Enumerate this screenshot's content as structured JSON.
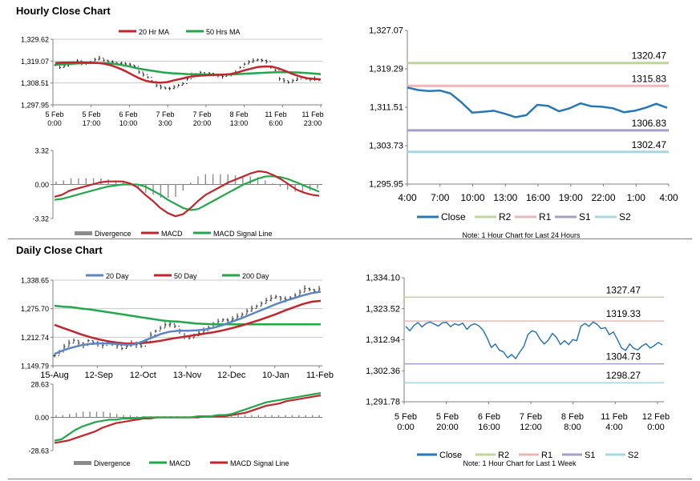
{
  "colors": {
    "ma20": "#c0262c",
    "ma50": "#22a84a",
    "ma20d": "#5b86c4",
    "ma50d": "#c0262c",
    "ma200d": "#22a84a",
    "divergence": "#8c8c8c",
    "close": "#2878b7",
    "r2": "#bcd79a",
    "r1": "#eab8b6",
    "s1": "#a79ec7",
    "s2": "#a9d6e3",
    "price": "#222222",
    "axis": "#808080",
    "grid": "#c8c8c8"
  },
  "sections": {
    "hourly_title": "Hourly Close Chart",
    "daily_title": "Daily Close Chart"
  },
  "chart_data": [
    {
      "id": "hourly_price",
      "type": "line",
      "xlabels": [
        "5 Feb",
        "5 Feb",
        "6 Feb",
        "7 Feb",
        "7 Feb",
        "8 Feb",
        "11 Feb",
        "11 Feb"
      ],
      "xlabels2": [
        "0:00",
        "17:00",
        "10:00",
        "3:00",
        "20:00",
        "13:00",
        "6:00",
        "23:00"
      ],
      "yticks": [
        "1,329.62",
        "1,319.07",
        "1,308.51",
        "1,297.95"
      ],
      "ytick_values": [
        1329.62,
        1319.07,
        1308.51,
        1297.95
      ],
      "ylim": [
        1297.95,
        1329.62
      ],
      "legend": [
        "20 Hr MA",
        "50 Hrs MA"
      ],
      "series": [
        {
          "name": "Price",
          "values": [
            1317.2,
            1316.0,
            1316.8,
            1317.5,
            1318.3,
            1319.2,
            1318.0,
            1317.8,
            1318.5,
            1319.8,
            1320.5,
            1319.5,
            1318.8,
            1318.5,
            1317.9,
            1318.1,
            1317.6,
            1317.2,
            1316.5,
            1313.8,
            1312.5,
            1311.2,
            1309.2,
            1307.3,
            1306.5,
            1306.0,
            1305.8,
            1306.5,
            1307.4,
            1308.2,
            1310.5,
            1312.4,
            1312.6,
            1313.5,
            1312.6,
            1313.3,
            1312.5,
            1312.1,
            1311.7,
            1312.3,
            1312.5,
            1313.7,
            1316.0,
            1317.6,
            1318.6,
            1319.3,
            1319.7,
            1319.4,
            1318.8,
            1316.0,
            1314.6,
            1310.5,
            1309.6,
            1308.8,
            1309.7,
            1310.4,
            1311.3,
            1310.8,
            1310.2,
            1310.6,
            1310.0
          ]
        },
        {
          "name": "20 Hr MA",
          "values": [
            1318.2,
            1318.3,
            1318.4,
            1318.4,
            1318.4,
            1318.3,
            1318.2,
            1317.8,
            1317.0,
            1315.8,
            1314.3,
            1312.5,
            1310.8,
            1309.5,
            1308.9,
            1308.6,
            1308.9,
            1309.8,
            1310.5,
            1311.3,
            1311.8,
            1312.1,
            1312.3,
            1312.4,
            1312.5,
            1312.8,
            1313.5,
            1314.5,
            1315.4,
            1316.2,
            1316.5,
            1316.4,
            1315.5,
            1314.2,
            1312.8,
            1311.7,
            1310.8,
            1310.5,
            1310.2
          ]
        },
        {
          "name": "50 Hrs MA",
          "values": [
            1317.3,
            1317.5,
            1317.8,
            1318.0,
            1318.1,
            1318.2,
            1318.1,
            1317.8,
            1317.2,
            1316.4,
            1315.5,
            1314.8,
            1314.2,
            1313.6,
            1313.2,
            1313.0,
            1312.8,
            1312.7,
            1312.6,
            1312.5,
            1312.5,
            1312.6,
            1312.8,
            1313.0,
            1313.2,
            1313.4,
            1313.6,
            1313.7,
            1313.7,
            1313.6,
            1313.4,
            1313.1,
            1312.8
          ]
        }
      ]
    },
    {
      "id": "hourly_macd",
      "type": "line",
      "yticks": [
        "3.32",
        "0.00",
        "-3.32"
      ],
      "ytick_values": [
        3.32,
        0,
        -3.32
      ],
      "ylim": [
        -3.32,
        3.32
      ],
      "legend": [
        "Divergence",
        "MACD",
        "MACD Signal Line"
      ],
      "series": [
        {
          "name": "MACD",
          "values": [
            -1.2,
            -1.0,
            -0.6,
            -0.4,
            -0.2,
            0.0,
            0.2,
            0.3,
            0.3,
            0.3,
            0.1,
            -0.3,
            -1.0,
            -1.6,
            -2.3,
            -2.8,
            -3.1,
            -2.9,
            -2.3,
            -1.6,
            -1.0,
            -0.6,
            -0.2,
            0.2,
            0.5,
            0.8,
            1.1,
            1.3,
            1.2,
            0.9,
            0.5,
            0.0,
            -0.5,
            -0.8,
            -1.0,
            -1.1
          ]
        },
        {
          "name": "MACD Signal Line",
          "values": [
            -1.5,
            -1.4,
            -1.2,
            -1.0,
            -0.8,
            -0.6,
            -0.4,
            -0.2,
            -0.1,
            0.0,
            0.0,
            0.0,
            -0.2,
            -0.6,
            -1.0,
            -1.5,
            -1.9,
            -2.3,
            -2.5,
            -2.4,
            -2.0,
            -1.6,
            -1.2,
            -0.8,
            -0.4,
            0.0,
            0.3,
            0.6,
            0.8,
            0.8,
            0.7,
            0.5,
            0.2,
            -0.1,
            -0.4,
            -0.7
          ]
        },
        {
          "name": "Divergence",
          "values": [
            0.3,
            0.4,
            0.6,
            0.6,
            0.6,
            0.6,
            0.6,
            0.5,
            0.4,
            0.3,
            0.1,
            -0.3,
            -0.8,
            -1.0,
            -1.3,
            -1.3,
            -1.2,
            -0.6,
            0.2,
            0.8,
            1.0,
            1.0,
            1.0,
            1.0,
            0.9,
            0.8,
            0.8,
            0.7,
            0.4,
            0.1,
            -0.2,
            -0.5,
            -0.7,
            -0.7,
            -0.6,
            -0.4
          ]
        }
      ]
    },
    {
      "id": "hourly_close",
      "type": "line",
      "xlabels": [
        "4:00",
        "7:00",
        "10:00",
        "13:00",
        "16:00",
        "19:00",
        "22:00",
        "1:00",
        "4:00"
      ],
      "yticks": [
        "1,327.07",
        "1,319.29",
        "1,311.51",
        "1,303.73",
        "1,295.95"
      ],
      "ytick_values": [
        1327.07,
        1319.29,
        1311.51,
        1303.73,
        1295.95
      ],
      "ylim": [
        1295.95,
        1327.07
      ],
      "legend": [
        "Close",
        "R2",
        "R1",
        "S1",
        "S2"
      ],
      "note": "Note: 1 Hour Chart for Last 24 Hours",
      "levels": [
        {
          "name": "R2",
          "value": 1320.47,
          "label": "1320.47"
        },
        {
          "name": "R1",
          "value": 1315.83,
          "label": "1315.83"
        },
        {
          "name": "S1",
          "value": 1306.83,
          "label": "1306.83"
        },
        {
          "name": "S2",
          "value": 1302.47,
          "label": "1302.47"
        }
      ],
      "series": [
        {
          "name": "Close",
          "values": [
            1315.5,
            1315.0,
            1314.8,
            1314.9,
            1314.3,
            1312.5,
            1310.4,
            1310.6,
            1310.8,
            1310.2,
            1309.5,
            1309.9,
            1312.0,
            1311.8,
            1310.7,
            1311.3,
            1312.3,
            1311.7,
            1311.6,
            1311.3,
            1310.5,
            1310.8,
            1311.4,
            1312.2,
            1311.4
          ]
        }
      ]
    },
    {
      "id": "daily_price",
      "type": "line",
      "xlabels": [
        "15-Aug",
        "12-Sep",
        "12-Oct",
        "13-Nov",
        "12-Dec",
        "10-Jan",
        "11-Feb"
      ],
      "yticks": [
        "1,338.65",
        "1,275.70",
        "1,212.74",
        "1,149.79"
      ],
      "ytick_values": [
        1338.65,
        1275.7,
        1212.74,
        1149.79
      ],
      "ylim": [
        1149.79,
        1338.65
      ],
      "legend": [
        "20 Day",
        "50 Day",
        "200 Day"
      ],
      "series": [
        {
          "name": "Price",
          "values": [
            1172,
            1180,
            1192,
            1200,
            1206,
            1200,
            1195,
            1205,
            1201,
            1198,
            1195,
            1202,
            1199,
            1194,
            1188,
            1193,
            1200,
            1196,
            1193,
            1204,
            1218,
            1226,
            1233,
            1240,
            1242,
            1237,
            1226,
            1215,
            1211,
            1216,
            1222,
            1227,
            1234,
            1241,
            1247,
            1251,
            1250,
            1253,
            1258,
            1263,
            1270,
            1276,
            1281,
            1287,
            1294,
            1299,
            1302,
            1298,
            1296,
            1300,
            1305,
            1312,
            1320,
            1318,
            1314,
            1319
          ]
        },
        {
          "name": "20 Day",
          "values": [
            1176,
            1184,
            1190,
            1195,
            1198,
            1199,
            1199,
            1198,
            1196,
            1197,
            1204,
            1212,
            1220,
            1225,
            1227,
            1227,
            1228,
            1230,
            1234,
            1240,
            1247,
            1254,
            1262,
            1270,
            1278,
            1286,
            1293,
            1299,
            1305,
            1310,
            1313
          ]
        },
        {
          "name": "50 Day",
          "values": [
            1240,
            1233,
            1226,
            1219,
            1213,
            1208,
            1204,
            1201,
            1199,
            1199,
            1200,
            1202,
            1205,
            1209,
            1212,
            1215,
            1218,
            1221,
            1224,
            1228,
            1233,
            1238,
            1244,
            1250,
            1257,
            1264,
            1272,
            1279,
            1286,
            1291,
            1293
          ]
        },
        {
          "name": "200 Day",
          "values": [
            1282,
            1280,
            1279,
            1276,
            1274,
            1271,
            1268,
            1265,
            1262,
            1259,
            1256,
            1253,
            1250,
            1248,
            1247,
            1245,
            1243,
            1242,
            1241,
            1241,
            1241,
            1241,
            1241,
            1241,
            1241,
            1241,
            1241,
            1241,
            1241,
            1241,
            1241
          ]
        }
      ]
    },
    {
      "id": "daily_macd",
      "type": "line",
      "yticks": [
        "28.63",
        "0.00",
        "-28.63"
      ],
      "ytick_values": [
        28.63,
        0,
        -28.63
      ],
      "ylim": [
        -28.63,
        28.63
      ],
      "legend": [
        "Divergence",
        "MACD",
        "MACD Signal Line"
      ],
      "series": [
        {
          "name": "MACD",
          "values": [
            -20,
            -19,
            -15,
            -11,
            -8,
            -6,
            -4,
            -3,
            -2,
            -2,
            -1,
            -1,
            -1,
            0,
            0,
            0,
            0,
            0,
            0,
            0,
            0,
            1,
            1,
            1,
            2,
            2,
            3,
            5,
            7,
            9,
            11,
            13,
            14,
            15,
            16,
            17,
            18,
            19,
            20,
            21
          ]
        },
        {
          "name": "MACD Signal Line",
          "values": [
            -22,
            -21,
            -20,
            -18,
            -16,
            -14,
            -12,
            -9,
            -7,
            -5,
            -4,
            -3,
            -2,
            -1,
            -1,
            0,
            0,
            0,
            0,
            0,
            0,
            0,
            1,
            1,
            1,
            1,
            2,
            3,
            4,
            6,
            8,
            10,
            11,
            12,
            14,
            15,
            16,
            17,
            18,
            19
          ]
        },
        {
          "name": "Divergence",
          "values": [
            2,
            2,
            3,
            4,
            5,
            5,
            5,
            5,
            4,
            3,
            2,
            2,
            1,
            1,
            1,
            1,
            1,
            1,
            1,
            1,
            1,
            1,
            1,
            1,
            1,
            1,
            1,
            2,
            2,
            2,
            2,
            2,
            2,
            2,
            2,
            2,
            2,
            2,
            2,
            2
          ]
        }
      ]
    },
    {
      "id": "daily_close",
      "type": "line",
      "xlabels": [
        "5 Feb",
        "5 Feb",
        "6 Feb",
        "7 Feb",
        "8 Feb",
        "11 Feb",
        "12 Feb"
      ],
      "xlabels2": [
        "0:00",
        "20:00",
        "16:00",
        "12:00",
        "8:00",
        "4:00",
        "0:00"
      ],
      "yticks": [
        "1,334.10",
        "1,323.52",
        "1,312.94",
        "1,302.36",
        "1,291.78"
      ],
      "ytick_values": [
        1334.1,
        1323.52,
        1312.94,
        1302.36,
        1291.78
      ],
      "ylim": [
        1291.78,
        1334.1
      ],
      "legend": [
        "Close",
        "R2",
        "R1",
        "S1",
        "S2"
      ],
      "note": "Note: 1 Hour Chart for Last 1 Week",
      "levels": [
        {
          "name": "R2",
          "value": 1327.47,
          "label": "1327.47"
        },
        {
          "name": "R1",
          "value": 1319.33,
          "label": "1319.33"
        },
        {
          "name": "S1",
          "value": 1304.73,
          "label": "1304.73"
        },
        {
          "name": "S2",
          "value": 1298.27,
          "label": "1298.27"
        }
      ],
      "series": [
        {
          "name": "Close",
          "values": [
            1317.5,
            1316.0,
            1317.8,
            1318.8,
            1317.3,
            1318.5,
            1319.0,
            1318.3,
            1317.6,
            1318.7,
            1318.9,
            1317.4,
            1318.4,
            1317.9,
            1318.6,
            1316.5,
            1317.9,
            1318.4,
            1317.6,
            1316.2,
            1313.5,
            1310.3,
            1311.5,
            1309.4,
            1308.8,
            1306.8,
            1307.9,
            1306.5,
            1308.7,
            1310.7,
            1314.7,
            1316.0,
            1315.5,
            1313.1,
            1311.5,
            1312.8,
            1315.1,
            1313.8,
            1311.3,
            1312.6,
            1311.3,
            1313.0,
            1312.6,
            1317.5,
            1318.5,
            1317.5,
            1319.0,
            1318.2,
            1316.7,
            1317.1,
            1314.7,
            1315.6,
            1313.0,
            1310.1,
            1309.3,
            1311.5,
            1310.0,
            1309.5,
            1310.8,
            1311.6,
            1310.1,
            1310.9,
            1312.0,
            1311.2
          ]
        }
      ]
    }
  ]
}
